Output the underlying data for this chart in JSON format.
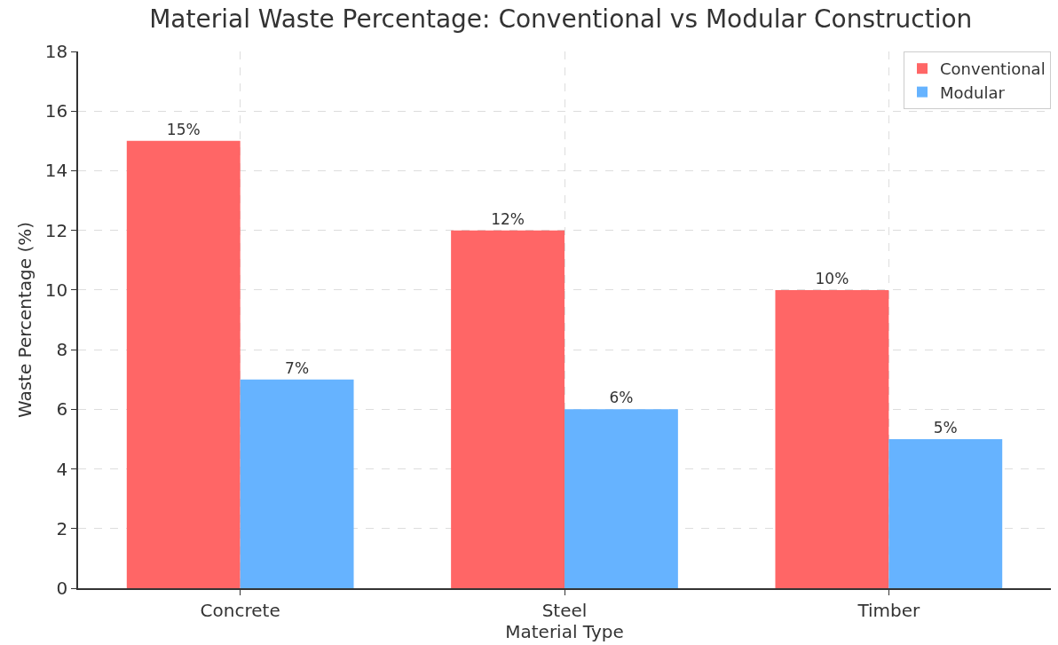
{
  "chart_data": {
    "type": "bar",
    "title": "Material Waste Percentage: Conventional vs Modular Construction",
    "xlabel": "Material Type",
    "ylabel": "Waste Percentage (%)",
    "categories": [
      "Concrete",
      "Steel",
      "Timber"
    ],
    "series": [
      {
        "name": "Conventional",
        "color": "#ff6666",
        "values": [
          15,
          12,
          10
        ],
        "value_labels": [
          "15%",
          "12%",
          "10%"
        ]
      },
      {
        "name": "Modular",
        "color": "#66b3ff",
        "values": [
          7,
          6,
          5
        ],
        "value_labels": [
          "7%",
          "6%",
          "5%"
        ]
      }
    ],
    "ylim": [
      0,
      18
    ],
    "yticks": [
      0,
      2,
      4,
      6,
      8,
      10,
      12,
      14,
      16,
      18
    ],
    "grid": true,
    "legend": "top right"
  }
}
